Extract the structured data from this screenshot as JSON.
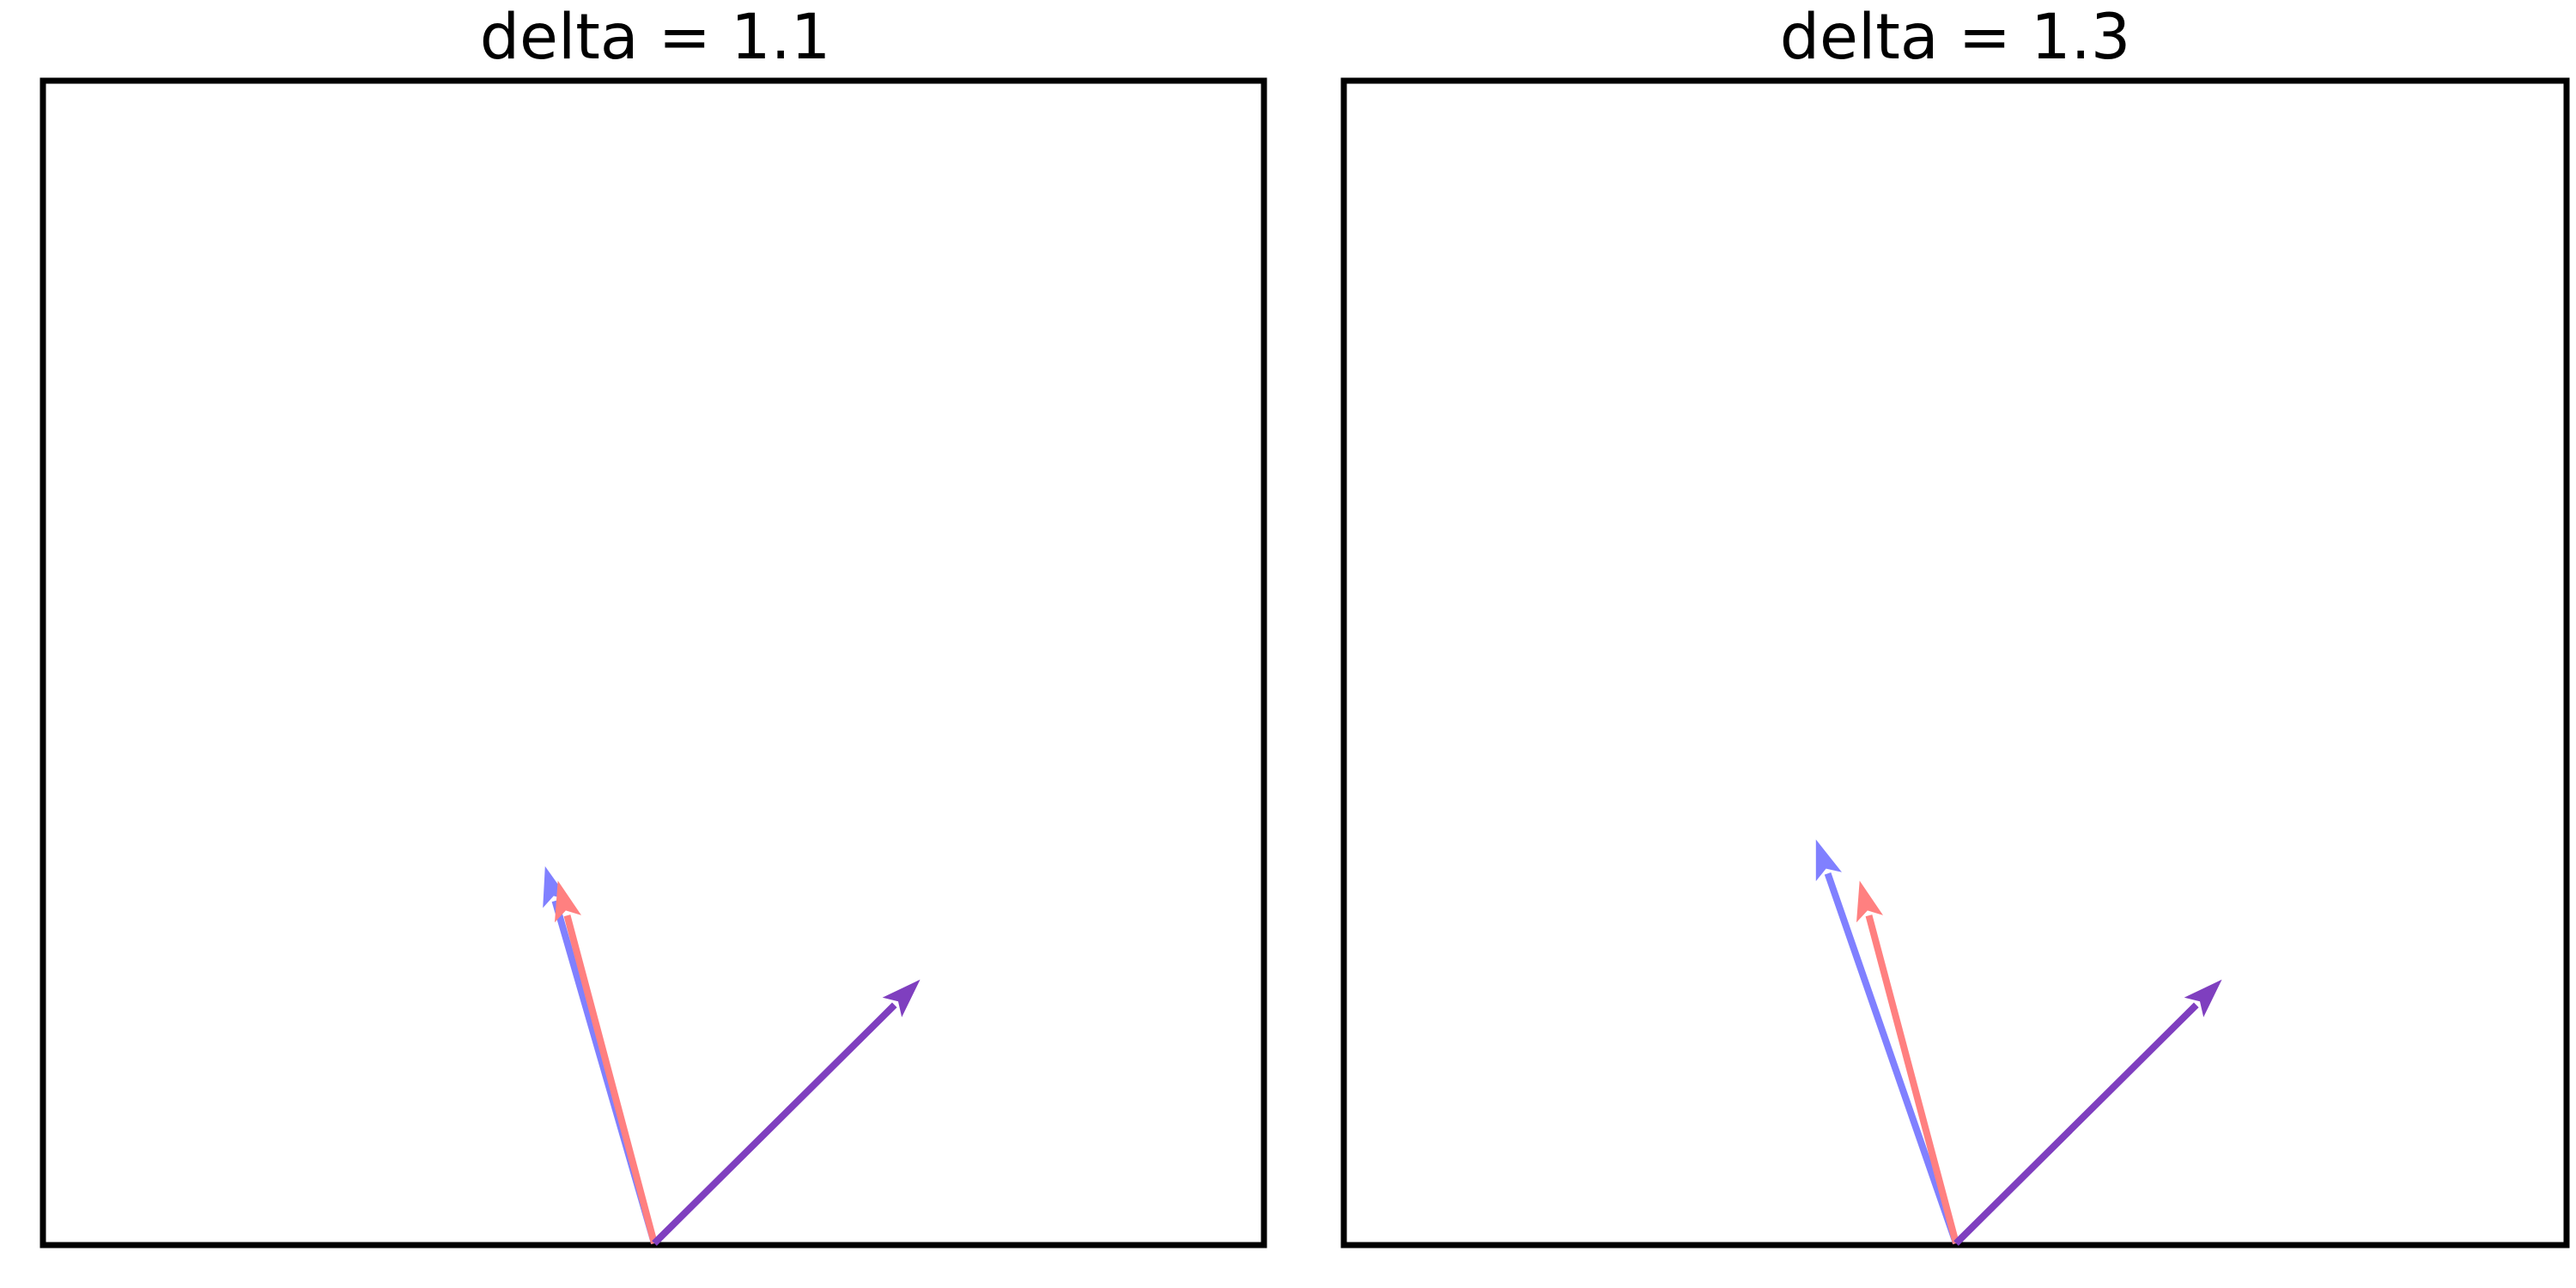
{
  "panels": [
    {
      "title": "delta = 1.1",
      "vectors": [
        {
          "name": "blue-vector",
          "color": "#8080ff",
          "dx": -0.265,
          "dy": 0.915
        },
        {
          "name": "red-vector",
          "color": "#ff8080",
          "dx": -0.234,
          "dy": 0.88
        },
        {
          "name": "purple-vector",
          "color": "#7f3fbf",
          "dx": 0.645,
          "dy": 0.64
        }
      ]
    },
    {
      "title": "delta = 1.3",
      "vectors": [
        {
          "name": "blue-vector",
          "color": "#8080ff",
          "dx": -0.34,
          "dy": 0.98
        },
        {
          "name": "red-vector",
          "color": "#ff8080",
          "dx": -0.234,
          "dy": 0.88
        },
        {
          "name": "purple-vector",
          "color": "#7f3fbf",
          "dx": 0.645,
          "dy": 0.64
        }
      ]
    }
  ]
}
